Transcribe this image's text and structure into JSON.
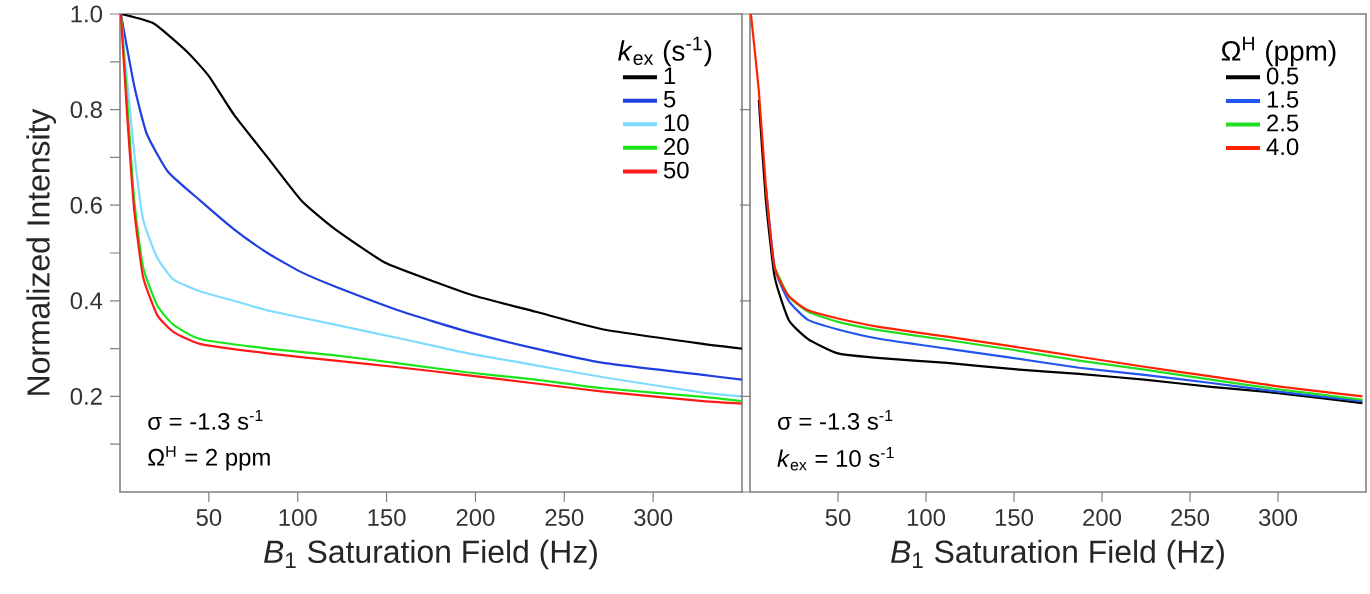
{
  "chart_data": [
    {
      "type": "line",
      "xlabel": "*B*$_{1}$ Saturation Field (Hz)",
      "ylabel": "Normalized Intensity",
      "legend_title": "*k*$_{ex}$ (s$^{-1}$)",
      "legend": "top right",
      "line_style": "solid",
      "xlim": [
        0,
        350
      ],
      "ylim": [
        0,
        1.0
      ],
      "xticks": [
        50,
        100,
        150,
        200,
        250,
        300
      ],
      "yticks": [
        {
          "value": 0.1,
          "label": null
        },
        0.2,
        {
          "value": 0.3,
          "label": null
        },
        0.4,
        {
          "value": 0.5,
          "label": null
        },
        0.6,
        {
          "value": 0.7,
          "label": null
        },
        0.8,
        {
          "value": 0.9,
          "label": null
        },
        {
          "value": 1.0,
          "label": "1.0"
        }
      ],
      "annotations": [
        "σ = -1.3 s$^{-1}$",
        "Ω$^{H}$ = 2 ppm"
      ],
      "series": [
        {
          "name": "1",
          "color": "#000000",
          "x": [
            0.5,
            19,
            38,
            50,
            64,
            83,
            102,
            121,
            149,
            177,
            200,
            234,
            272,
            328,
            350
          ],
          "values": [
            1.0,
            0.98,
            0.92,
            0.87,
            0.79,
            0.7,
            0.61,
            0.55,
            0.48,
            0.44,
            0.41,
            0.377,
            0.34,
            0.31,
            0.3
          ]
        },
        {
          "name": "5",
          "color": "#1f3fe0",
          "x": [
            0.5,
            8,
            15,
            27,
            45,
            64,
            83,
            102,
            121,
            159,
            196,
            234,
            272,
            328,
            350
          ],
          "values": [
            1.0,
            0.85,
            0.75,
            0.67,
            0.61,
            0.55,
            0.5,
            0.46,
            0.43,
            0.377,
            0.335,
            0.3,
            0.27,
            0.245,
            0.235
          ]
        },
        {
          "name": "10",
          "color": "#80dcff",
          "x": [
            0.5,
            4,
            8,
            13,
            21,
            30,
            45,
            64,
            83,
            121,
            159,
            196,
            234,
            272,
            328,
            350
          ],
          "values": [
            1.0,
            0.86,
            0.71,
            0.57,
            0.49,
            0.445,
            0.42,
            0.4,
            0.38,
            0.35,
            0.32,
            0.29,
            0.265,
            0.24,
            0.208,
            0.2
          ]
        },
        {
          "name": "20",
          "color": "#19e619",
          "x": [
            0.5,
            4,
            8,
            13,
            21,
            30,
            45,
            83,
            121,
            159,
            196,
            234,
            272,
            328,
            350
          ],
          "values": [
            1.0,
            0.82,
            0.61,
            0.47,
            0.39,
            0.35,
            0.32,
            0.3,
            0.286,
            0.268,
            0.25,
            0.235,
            0.217,
            0.199,
            0.19
          ]
        },
        {
          "name": "50",
          "color": "#ff1a1a",
          "x": [
            0.5,
            4,
            8,
            13,
            21,
            30,
            45,
            83,
            121,
            159,
            196,
            234,
            272,
            328,
            350
          ],
          "values": [
            1.0,
            0.79,
            0.59,
            0.45,
            0.37,
            0.335,
            0.31,
            0.29,
            0.275,
            0.26,
            0.244,
            0.227,
            0.21,
            0.19,
            0.185
          ]
        }
      ]
    },
    {
      "type": "line",
      "xlabel": "*B*$_{1}$ Saturation Field (Hz)",
      "legend_title": "Ω$^{H}$ (ppm)",
      "legend": "top right",
      "line_style": "solid",
      "tick_labels": "x",
      "xlim": [
        0,
        350
      ],
      "ylim": [
        0,
        1.0
      ],
      "xticks": [
        50,
        100,
        150,
        200,
        250,
        300
      ],
      "annotations": [
        "σ = -1.3 s$^{-1}$",
        "*k*$_{ex}$ = 10 s$^{-1}$"
      ],
      "series": [
        {
          "name": "0.5",
          "color": "#000000",
          "x": [
            5,
            9,
            14,
            22,
            33,
            50,
            74,
            112,
            150,
            187,
            224,
            262,
            300,
            348
          ],
          "values": [
            0.82,
            0.61,
            0.45,
            0.36,
            0.32,
            0.29,
            0.28,
            0.27,
            0.257,
            0.247,
            0.235,
            0.22,
            0.207,
            0.186
          ]
        },
        {
          "name": "1.5",
          "color": "#2255ee",
          "x": [
            9,
            14,
            22,
            33,
            50,
            74,
            112,
            150,
            187,
            224,
            262,
            300,
            348
          ],
          "values": [
            0.64,
            0.47,
            0.4,
            0.36,
            0.34,
            0.32,
            0.3,
            0.28,
            0.26,
            0.245,
            0.228,
            0.21,
            0.19
          ]
        },
        {
          "name": "2.5",
          "color": "#22dd22",
          "x": [
            14,
            22,
            33,
            50,
            74,
            112,
            150,
            187,
            224,
            262,
            300,
            348
          ],
          "values": [
            0.47,
            0.41,
            0.377,
            0.356,
            0.338,
            0.318,
            0.297,
            0.275,
            0.256,
            0.235,
            0.215,
            0.193
          ]
        },
        {
          "name": "4.0",
          "color": "#ff2200",
          "x": [
            0.5,
            5,
            9,
            14,
            22,
            33,
            50,
            74,
            112,
            150,
            187,
            224,
            262,
            300,
            348
          ],
          "values": [
            1.0,
            0.84,
            0.64,
            0.47,
            0.41,
            0.38,
            0.363,
            0.345,
            0.325,
            0.304,
            0.283,
            0.262,
            0.242,
            0.221,
            0.2
          ]
        }
      ]
    }
  ]
}
